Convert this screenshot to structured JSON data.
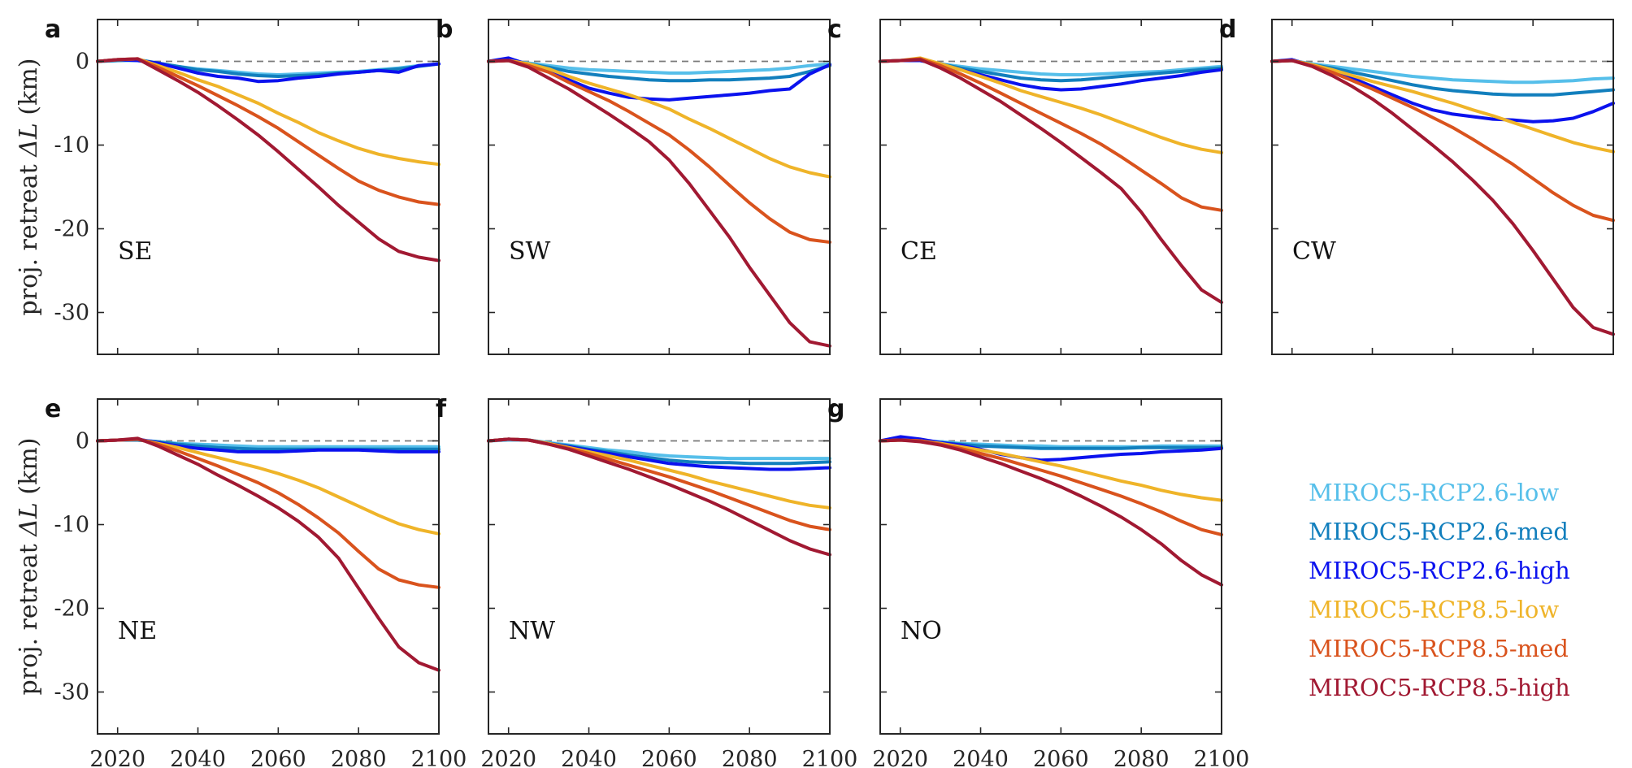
{
  "colors": {
    "rcp26_low": "#56bfea",
    "rcp26_med": "#127fbd",
    "rcp26_high": "#0b12ee",
    "rcp85_low": "#efb429",
    "rcp85_med": "#d9531d",
    "rcp85_high": "#a11932"
  },
  "chart_data": {
    "type": "line",
    "xlim": [
      2015,
      2100
    ],
    "ylim": [
      -35,
      5
    ],
    "x_ticks": [
      2020,
      2040,
      2060,
      2080,
      2100
    ],
    "y_ticks": [
      0,
      -10,
      -20,
      -30
    ],
    "ylabel_text": "proj. retreat ",
    "ylabel_delta": "ΔL",
    "ylabel_unit": " (km)",
    "x": [
      2015,
      2020,
      2025,
      2030,
      2035,
      2040,
      2045,
      2050,
      2055,
      2060,
      2065,
      2070,
      2075,
      2080,
      2085,
      2090,
      2095,
      2100
    ],
    "legend": {
      "position": "right",
      "entries": [
        {
          "key": "rcp26_low",
          "label": "MIROC5-RCP2.6-low"
        },
        {
          "key": "rcp26_med",
          "label": "MIROC5-RCP2.6-med"
        },
        {
          "key": "rcp26_high",
          "label": "MIROC5-RCP2.6-high"
        },
        {
          "key": "rcp85_low",
          "label": "MIROC5-RCP8.5-low"
        },
        {
          "key": "rcp85_med",
          "label": "MIROC5-RCP8.5-med"
        },
        {
          "key": "rcp85_high",
          "label": "MIROC5-RCP8.5-high"
        }
      ]
    },
    "panels": [
      {
        "letter": "a",
        "region": "SE",
        "series": {
          "rcp26_low": [
            0,
            0.1,
            0.1,
            -0.2,
            -0.6,
            -0.9,
            -1.1,
            -1.3,
            -1.5,
            -1.6,
            -1.5,
            -1.4,
            -1.3,
            -1.2,
            -1.0,
            -0.8,
            -0.5,
            -0.3
          ],
          "rcp26_med": [
            0,
            0.1,
            0.2,
            -0.2,
            -0.6,
            -1.0,
            -1.2,
            -1.5,
            -1.7,
            -1.8,
            -1.7,
            -1.6,
            -1.4,
            -1.3,
            -1.1,
            -0.9,
            -0.6,
            -0.3
          ],
          "rcp26_high": [
            0,
            0.2,
            0.1,
            -0.2,
            -0.8,
            -1.4,
            -1.8,
            -2.0,
            -2.4,
            -2.3,
            -2.0,
            -1.8,
            -1.5,
            -1.3,
            -1.1,
            -1.3,
            -0.5,
            -0.3
          ],
          "rcp85_low": [
            0,
            0.2,
            0.3,
            -0.5,
            -1.3,
            -2.2,
            -3.0,
            -4.0,
            -5.0,
            -6.2,
            -7.3,
            -8.5,
            -9.5,
            -10.4,
            -11.1,
            -11.6,
            -12.0,
            -12.3
          ],
          "rcp85_med": [
            0,
            0.2,
            0.3,
            -0.7,
            -1.8,
            -2.9,
            -4.1,
            -5.3,
            -6.6,
            -8.0,
            -9.6,
            -11.2,
            -12.8,
            -14.3,
            -15.4,
            -16.2,
            -16.8,
            -17.1
          ],
          "rcp85_high": [
            0,
            0.2,
            0.3,
            -1.0,
            -2.3,
            -3.7,
            -5.3,
            -7.0,
            -8.8,
            -10.8,
            -12.9,
            -15.0,
            -17.2,
            -19.2,
            -21.2,
            -22.7,
            -23.4,
            -23.8
          ]
        }
      },
      {
        "letter": "b",
        "region": "SW",
        "series": {
          "rcp26_low": [
            0,
            0.1,
            -0.2,
            -0.5,
            -0.8,
            -1.0,
            -1.1,
            -1.2,
            -1.3,
            -1.4,
            -1.4,
            -1.3,
            -1.2,
            -1.1,
            -1.0,
            -0.8,
            -0.5,
            -0.3
          ],
          "rcp26_med": [
            0,
            0.2,
            -0.3,
            -0.7,
            -1.2,
            -1.5,
            -1.8,
            -2.0,
            -2.2,
            -2.3,
            -2.3,
            -2.2,
            -2.2,
            -2.1,
            -2.0,
            -1.8,
            -1.2,
            -0.5
          ],
          "rcp26_high": [
            0,
            0.4,
            -0.4,
            -1.0,
            -2.2,
            -3.2,
            -3.8,
            -4.3,
            -4.5,
            -4.6,
            -4.4,
            -4.2,
            -4.0,
            -3.8,
            -3.5,
            -3.3,
            -1.5,
            -0.4
          ],
          "rcp85_low": [
            0,
            0.1,
            -0.3,
            -0.9,
            -1.8,
            -2.6,
            -3.3,
            -4.0,
            -4.8,
            -5.7,
            -6.9,
            -8.0,
            -9.2,
            -10.4,
            -11.6,
            -12.6,
            -13.3,
            -13.8
          ],
          "rcp85_med": [
            0,
            0.1,
            -0.5,
            -1.3,
            -2.5,
            -3.6,
            -4.7,
            -6.0,
            -7.4,
            -8.8,
            -10.6,
            -12.6,
            -14.8,
            -16.9,
            -18.8,
            -20.4,
            -21.3,
            -21.6
          ],
          "rcp85_high": [
            0,
            0.1,
            -0.7,
            -2.0,
            -3.3,
            -4.8,
            -6.3,
            -7.9,
            -9.6,
            -11.8,
            -14.6,
            -17.8,
            -21.0,
            -24.6,
            -27.9,
            -31.2,
            -33.5,
            -34.0
          ]
        }
      },
      {
        "letter": "c",
        "region": "CE",
        "series": {
          "rcp26_low": [
            0,
            0.1,
            0.1,
            -0.3,
            -0.6,
            -0.9,
            -1.1,
            -1.3,
            -1.5,
            -1.6,
            -1.6,
            -1.5,
            -1.4,
            -1.3,
            -1.2,
            -1.0,
            -0.8,
            -0.6
          ],
          "rcp26_med": [
            0,
            0.1,
            0.1,
            -0.3,
            -0.8,
            -1.2,
            -1.6,
            -2.0,
            -2.2,
            -2.3,
            -2.2,
            -2.0,
            -1.8,
            -1.6,
            -1.4,
            -1.2,
            -1.0,
            -0.8
          ],
          "rcp26_high": [
            0,
            0.1,
            0.1,
            -0.4,
            -1.0,
            -1.6,
            -2.2,
            -2.8,
            -3.2,
            -3.4,
            -3.3,
            -3.0,
            -2.7,
            -2.3,
            -2.0,
            -1.7,
            -1.3,
            -1.0
          ],
          "rcp85_low": [
            0,
            0.1,
            0.4,
            -0.3,
            -1.0,
            -1.8,
            -2.6,
            -3.5,
            -4.2,
            -4.9,
            -5.6,
            -6.4,
            -7.3,
            -8.2,
            -9.1,
            -9.9,
            -10.5,
            -10.9
          ],
          "rcp85_med": [
            0,
            0.1,
            0.3,
            -0.5,
            -1.5,
            -2.6,
            -3.8,
            -5.0,
            -6.2,
            -7.4,
            -8.6,
            -9.9,
            -11.4,
            -13.0,
            -14.6,
            -16.3,
            -17.4,
            -17.8
          ],
          "rcp85_high": [
            0,
            0.1,
            0.2,
            -0.8,
            -2.0,
            -3.4,
            -4.8,
            -6.4,
            -8.0,
            -9.7,
            -11.5,
            -13.3,
            -15.2,
            -18.0,
            -21.3,
            -24.4,
            -27.3,
            -28.8
          ]
        }
      },
      {
        "letter": "d",
        "region": "CW",
        "series": {
          "rcp26_low": [
            0,
            0.1,
            -0.3,
            -0.6,
            -0.9,
            -1.2,
            -1.5,
            -1.8,
            -2.0,
            -2.2,
            -2.3,
            -2.4,
            -2.5,
            -2.5,
            -2.4,
            -2.3,
            -2.1,
            -2.0
          ],
          "rcp26_med": [
            0,
            0.1,
            -0.4,
            -0.8,
            -1.3,
            -1.8,
            -2.3,
            -2.8,
            -3.2,
            -3.5,
            -3.7,
            -3.9,
            -4.0,
            -4.0,
            -4.0,
            -3.8,
            -3.6,
            -3.4
          ],
          "rcp26_high": [
            0,
            0.2,
            -0.5,
            -1.2,
            -2.0,
            -3.0,
            -4.0,
            -5.0,
            -5.8,
            -6.3,
            -6.6,
            -6.9,
            -7.0,
            -7.2,
            -7.1,
            -6.8,
            -6.0,
            -5.0
          ],
          "rcp85_low": [
            0,
            0.1,
            -0.4,
            -1.0,
            -1.7,
            -2.4,
            -3.0,
            -3.6,
            -4.3,
            -5.0,
            -5.8,
            -6.5,
            -7.3,
            -8.1,
            -8.9,
            -9.7,
            -10.3,
            -10.8
          ],
          "rcp85_med": [
            0,
            0.1,
            -0.5,
            -1.3,
            -2.3,
            -3.3,
            -4.4,
            -5.5,
            -6.7,
            -7.9,
            -9.3,
            -10.8,
            -12.3,
            -14.0,
            -15.7,
            -17.2,
            -18.4,
            -19.0
          ],
          "rcp85_high": [
            0,
            0.1,
            -0.6,
            -1.7,
            -3.0,
            -4.5,
            -6.2,
            -8.1,
            -10.0,
            -12.0,
            -14.2,
            -16.6,
            -19.4,
            -22.6,
            -26.0,
            -29.4,
            -31.8,
            -32.6
          ]
        }
      },
      {
        "letter": "e",
        "region": "NE",
        "series": {
          "rcp26_low": [
            0,
            0.1,
            0.1,
            -0.1,
            -0.3,
            -0.4,
            -0.5,
            -0.6,
            -0.7,
            -0.7,
            -0.7,
            -0.7,
            -0.7,
            -0.7,
            -0.7,
            -0.7,
            -0.7,
            -0.7
          ],
          "rcp26_med": [
            0,
            0.1,
            0.1,
            -0.1,
            -0.4,
            -0.6,
            -0.8,
            -0.9,
            -1.0,
            -1.0,
            -1.0,
            -1.0,
            -1.0,
            -1.0,
            -1.0,
            -1.0,
            -1.0,
            -1.0
          ],
          "rcp26_high": [
            0,
            0.1,
            0.2,
            -0.2,
            -0.6,
            -0.9,
            -1.1,
            -1.3,
            -1.3,
            -1.3,
            -1.2,
            -1.1,
            -1.1,
            -1.1,
            -1.2,
            -1.3,
            -1.3,
            -1.3
          ],
          "rcp85_low": [
            0,
            0.1,
            0.2,
            -0.3,
            -0.8,
            -1.4,
            -2.0,
            -2.6,
            -3.2,
            -3.9,
            -4.7,
            -5.6,
            -6.7,
            -7.8,
            -8.9,
            -9.9,
            -10.6,
            -11.1
          ],
          "rcp85_med": [
            0,
            0.1,
            0.2,
            -0.4,
            -1.2,
            -2.1,
            -3.0,
            -4.0,
            -5.0,
            -6.2,
            -7.6,
            -9.2,
            -11.0,
            -13.2,
            -15.3,
            -16.6,
            -17.2,
            -17.5
          ],
          "rcp85_high": [
            0,
            0.1,
            0.3,
            -0.6,
            -1.7,
            -2.8,
            -4.1,
            -5.3,
            -6.6,
            -8.0,
            -9.6,
            -11.5,
            -14.0,
            -17.6,
            -21.2,
            -24.6,
            -26.5,
            -27.4
          ]
        }
      },
      {
        "letter": "f",
        "region": "NW",
        "series": {
          "rcp26_low": [
            0,
            0.1,
            0.1,
            -0.2,
            -0.5,
            -0.8,
            -1.1,
            -1.3,
            -1.6,
            -1.8,
            -1.9,
            -2.0,
            -2.1,
            -2.1,
            -2.1,
            -2.1,
            -2.1,
            -2.1
          ],
          "rcp26_med": [
            0,
            0.2,
            0.1,
            -0.3,
            -0.6,
            -1.0,
            -1.3,
            -1.7,
            -2.0,
            -2.3,
            -2.5,
            -2.6,
            -2.6,
            -2.7,
            -2.7,
            -2.7,
            -2.6,
            -2.5
          ],
          "rcp26_high": [
            0,
            0.2,
            0.1,
            -0.3,
            -0.7,
            -1.1,
            -1.5,
            -1.9,
            -2.3,
            -2.7,
            -2.9,
            -3.1,
            -3.2,
            -3.3,
            -3.4,
            -3.4,
            -3.3,
            -3.2
          ],
          "rcp85_low": [
            0,
            0.2,
            0.1,
            -0.3,
            -0.8,
            -1.3,
            -1.8,
            -2.3,
            -2.9,
            -3.5,
            -4.1,
            -4.8,
            -5.4,
            -6.0,
            -6.6,
            -7.2,
            -7.7,
            -8.0
          ],
          "rcp85_med": [
            0,
            0.2,
            0.1,
            -0.4,
            -0.9,
            -1.5,
            -2.2,
            -2.9,
            -3.6,
            -4.3,
            -5.1,
            -5.9,
            -6.8,
            -7.7,
            -8.6,
            -9.5,
            -10.2,
            -10.6
          ],
          "rcp85_high": [
            0,
            0.2,
            0.1,
            -0.4,
            -1.0,
            -1.8,
            -2.6,
            -3.4,
            -4.3,
            -5.2,
            -6.2,
            -7.2,
            -8.3,
            -9.5,
            -10.7,
            -11.9,
            -12.9,
            -13.6
          ]
        }
      },
      {
        "letter": "g",
        "region": "NO",
        "series": {
          "rcp26_low": [
            0,
            0.1,
            0.0,
            -0.1,
            -0.3,
            -0.4,
            -0.5,
            -0.6,
            -0.6,
            -0.7,
            -0.7,
            -0.7,
            -0.7,
            -0.7,
            -0.6,
            -0.6,
            -0.6,
            -0.6
          ],
          "rcp26_med": [
            0,
            0.2,
            0.0,
            -0.2,
            -0.4,
            -0.6,
            -0.7,
            -0.8,
            -0.9,
            -0.9,
            -0.9,
            -0.9,
            -0.9,
            -0.8,
            -0.8,
            -0.8,
            -0.8,
            -0.8
          ],
          "rcp26_high": [
            0,
            0.5,
            0.2,
            -0.2,
            -0.5,
            -1.0,
            -1.6,
            -2.0,
            -2.3,
            -2.2,
            -2.0,
            -1.8,
            -1.6,
            -1.5,
            -1.3,
            -1.2,
            -1.1,
            -0.9
          ],
          "rcp85_low": [
            0,
            0.1,
            0.0,
            -0.3,
            -0.7,
            -1.1,
            -1.5,
            -2.0,
            -2.5,
            -3.0,
            -3.6,
            -4.2,
            -4.8,
            -5.3,
            -5.9,
            -6.4,
            -6.8,
            -7.1
          ],
          "rcp85_med": [
            0,
            0.1,
            0.0,
            -0.4,
            -0.9,
            -1.5,
            -2.1,
            -2.8,
            -3.5,
            -4.2,
            -5.0,
            -5.8,
            -6.6,
            -7.5,
            -8.5,
            -9.6,
            -10.6,
            -11.2
          ],
          "rcp85_high": [
            0,
            0.1,
            -0.1,
            -0.5,
            -1.1,
            -1.9,
            -2.7,
            -3.6,
            -4.5,
            -5.5,
            -6.6,
            -7.8,
            -9.1,
            -10.6,
            -12.3,
            -14.3,
            -16.0,
            -17.2
          ]
        }
      }
    ]
  }
}
